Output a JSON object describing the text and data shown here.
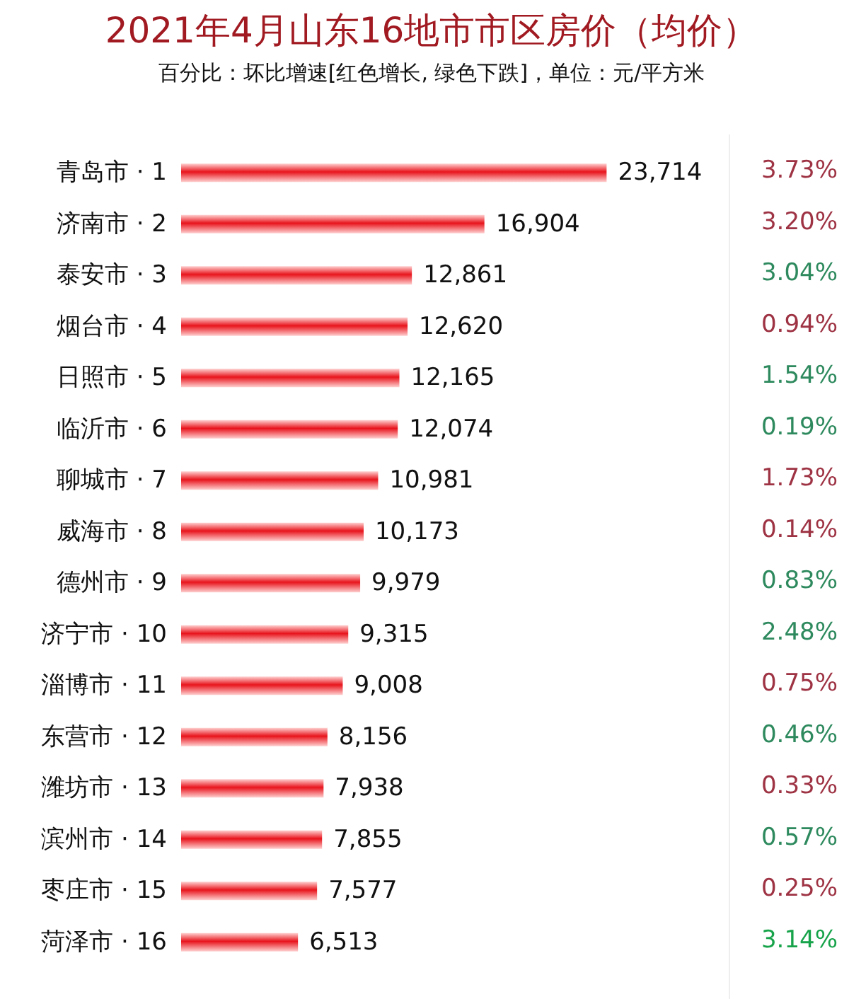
{
  "chart_data": [
    {
      "type": "bar",
      "orientation": "horizontal",
      "title": "2021年4月山东16地市市区房价（均价）",
      "subtitle": "百分比：坏比增速[红色增长, 绿色下跌]，单位：元/平方米",
      "categories": [
        "青岛市 · 1",
        "济南市 · 2",
        "泰安市 · 3",
        "烟台市 · 4",
        "日照市 · 5",
        "临沂市 · 6",
        "聊城市 · 7",
        "威海市 · 8",
        "德州市 · 9",
        "济宁市 · 10",
        "淄博市 · 11",
        "东营市 · 12",
        "潍坊市 · 13",
        "滨州市 · 14",
        "枣庄市 · 15",
        "菏泽市 · 16"
      ],
      "values": [
        23714,
        16904,
        12861,
        12620,
        12165,
        12074,
        10981,
        10173,
        9979,
        9315,
        9008,
        8156,
        7938,
        7855,
        7577,
        6513
      ],
      "value_labels": [
        "23,714",
        "16,904",
        "12,861",
        "12,620",
        "12,165",
        "12,074",
        "10,981",
        "10,173",
        "9,979",
        "9,315",
        "9,008",
        "8,156",
        "7,938",
        "7,855",
        "7,577",
        "6,513"
      ],
      "color": "#e8141c",
      "grid": false
    },
    {
      "type": "other",
      "categories": [
        "3.73%",
        "3.20%",
        "3.04%",
        "0.94%",
        "1.54%",
        "0.19%",
        "1.73%",
        "0.14%",
        "0.83%",
        "2.48%",
        "0.75%",
        "0.46%",
        "0.33%",
        "0.57%",
        "0.25%",
        "3.14%"
      ],
      "colors": [
        "#9e3344",
        "#9e3344",
        "#2e8a5e",
        "#9e3344",
        "#2e8a5e",
        "#2e8a5e",
        "#9e3344",
        "#9e3344",
        "#2e8a5e",
        "#2e8a5e",
        "#9e3344",
        "#2e8a5e",
        "#9e3344",
        "#2e8a5e",
        "#9e3344",
        "#17a34a"
      ]
    }
  ]
}
